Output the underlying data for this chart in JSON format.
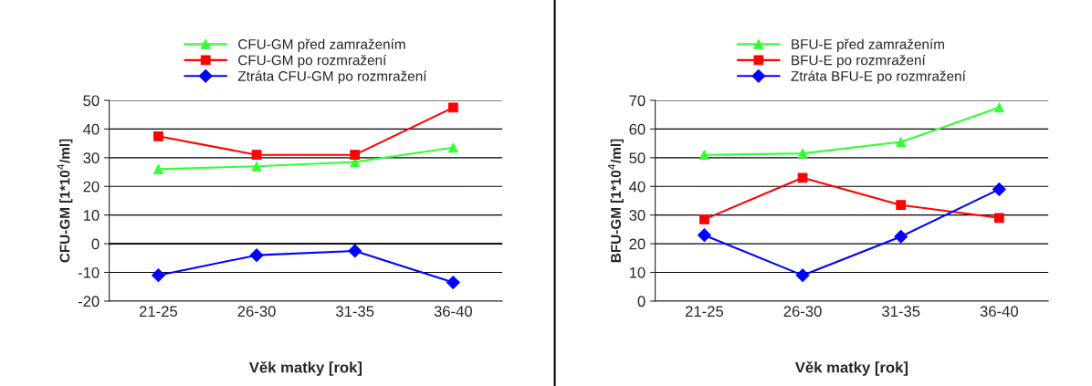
{
  "chart_data": [
    {
      "type": "line",
      "xlabel": "Věk matky [rok]",
      "ylabel": "CFU-GM [1*10$^{4}$/ml]",
      "categories": [
        "21-25",
        "26-30",
        "31-35",
        "36-40"
      ],
      "series": [
        {
          "name": "CFU-GM před zamražením",
          "color": "#33ff33",
          "marker": "triangle",
          "values": [
            26,
            27,
            28.5,
            33.5
          ]
        },
        {
          "name": "CFU-GM po rozmražení",
          "color": "#ff0000",
          "marker": "square",
          "values": [
            37.5,
            31,
            31,
            47.5
          ]
        },
        {
          "name": "Ztráta CFU-GM po rozmražení",
          "color": "#0000ff",
          "marker": "diamond",
          "values": [
            -11,
            -4,
            -2.5,
            -13.5
          ]
        }
      ],
      "ylim": [
        -20,
        50
      ],
      "yticks": [
        -20,
        -10,
        0,
        10,
        20,
        30,
        40,
        50
      ],
      "grid": "y",
      "legend": "top"
    },
    {
      "type": "line",
      "xlabel": "Věk matky [rok]",
      "ylabel": "BFU-GM [1*10$^{4}$/ml]",
      "categories": [
        "21-25",
        "26-30",
        "31-35",
        "36-40"
      ],
      "series": [
        {
          "name": "BFU-E před zamražením",
          "color": "#33ff33",
          "marker": "triangle",
          "values": [
            51,
            51.5,
            55.5,
            67.5
          ]
        },
        {
          "name": "BFU-E po rozmražení",
          "color": "#ff0000",
          "marker": "square",
          "values": [
            28.5,
            43,
            33.5,
            29
          ]
        },
        {
          "name": "Ztráta BFU-E po rozmražení",
          "color": "#0000ff",
          "marker": "diamond",
          "values": [
            23,
            9,
            22.5,
            39
          ]
        }
      ],
      "ylim": [
        0,
        70
      ],
      "yticks": [
        0,
        10,
        20,
        30,
        40,
        50,
        60,
        70
      ],
      "grid": "y",
      "legend": "top"
    }
  ]
}
